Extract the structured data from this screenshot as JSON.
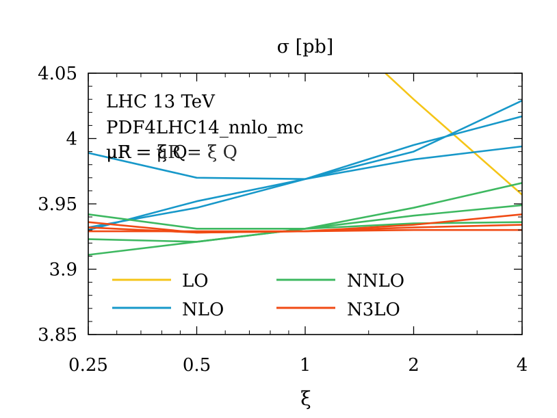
{
  "chart_data": {
    "type": "line",
    "title": "σ [pb]",
    "xlabel": "ξ",
    "ylabel": "",
    "xscale": "log2",
    "xlim": [
      0.25,
      4
    ],
    "ylim": [
      3.85,
      4.05
    ],
    "xticks": [
      {
        "value": 0.25,
        "label": "0.25"
      },
      {
        "value": 0.5,
        "label": "0.5"
      },
      {
        "value": 1,
        "label": "1"
      },
      {
        "value": 2,
        "label": "2"
      },
      {
        "value": 4,
        "label": "4"
      }
    ],
    "yticks": [
      {
        "value": 3.85,
        "label": "3.85"
      },
      {
        "value": 3.9,
        "label": "3.9"
      },
      {
        "value": 3.95,
        "label": "3.95"
      },
      {
        "value": 4.0,
        "label": "4"
      },
      {
        "value": 4.05,
        "label": "4.05"
      }
    ],
    "annotations": [
      "LHC 13 TeV",
      "PDF4LHC14_nnlo_mc",
      "μR = ξ Q",
      "μF = μR = ξ Q"
    ],
    "legend_position": "bottom",
    "series": [
      {
        "name": "LO",
        "legend": true,
        "color": "#f5c518",
        "x": [
          1.67,
          2.0,
          4.0
        ],
        "y": [
          4.05,
          4.03,
          3.957
        ]
      },
      {
        "name": "NLO",
        "legend": true,
        "color": "#1798c9",
        "x": [
          0.25,
          0.5,
          1.0,
          2.0,
          4.0
        ],
        "y": [
          3.989,
          3.97,
          3.969,
          3.99,
          4.029
        ]
      },
      {
        "name": "NLO",
        "legend": false,
        "color": "#1798c9",
        "x": [
          0.25,
          0.5,
          1.0,
          2.0,
          4.0
        ],
        "y": [
          3.93,
          3.952,
          3.969,
          3.995,
          4.017
        ]
      },
      {
        "name": "NLO",
        "legend": false,
        "color": "#1798c9",
        "x": [
          0.25,
          0.5,
          1.0,
          2.0,
          4.0
        ],
        "y": [
          3.932,
          3.947,
          3.969,
          3.984,
          3.994
        ]
      },
      {
        "name": "NNLO",
        "legend": true,
        "color": "#3db860",
        "x": [
          0.25,
          0.5,
          1.0,
          2.0,
          4.0
        ],
        "y": [
          3.942,
          3.931,
          3.931,
          3.947,
          3.966
        ]
      },
      {
        "name": "NNLO",
        "legend": false,
        "color": "#3db860",
        "x": [
          0.25,
          0.5,
          1.0,
          2.0,
          4.0
        ],
        "y": [
          3.911,
          3.921,
          3.931,
          3.941,
          3.949
        ]
      },
      {
        "name": "NNLO",
        "legend": false,
        "color": "#3db860",
        "x": [
          0.25,
          0.5,
          1.0,
          2.0,
          4.0
        ],
        "y": [
          3.923,
          3.921,
          3.931,
          3.935,
          3.936
        ]
      },
      {
        "name": "N3LO",
        "legend": true,
        "color": "#f04a14",
        "x": [
          0.25,
          0.5,
          1.0,
          2.0,
          4.0
        ],
        "y": [
          3.936,
          3.928,
          3.929,
          3.934,
          3.942
        ]
      },
      {
        "name": "N3LO",
        "legend": false,
        "color": "#f04a14",
        "x": [
          0.25,
          0.5,
          1.0,
          2.0,
          4.0
        ],
        "y": [
          3.929,
          3.929,
          3.929,
          3.93,
          3.93
        ]
      },
      {
        "name": "N3LO",
        "legend": false,
        "color": "#f04a14",
        "x": [
          0.25,
          0.5,
          1.0,
          2.0,
          4.0
        ],
        "y": [
          3.932,
          3.928,
          3.929,
          3.932,
          3.934
        ]
      }
    ]
  }
}
